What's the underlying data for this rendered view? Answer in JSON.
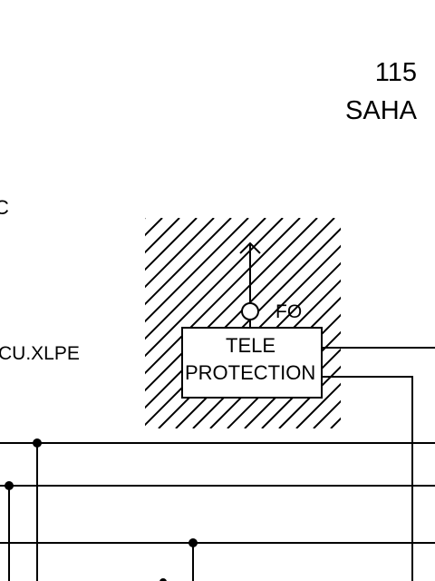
{
  "station": {
    "number": "115",
    "name": "SAHA"
  },
  "labels": {
    "cut_left": "C",
    "cable": "CU.XLPE",
    "fiber": "FO"
  },
  "teleprotection": {
    "line1": "TELE",
    "line2": "PROTECTION"
  },
  "colors": {
    "stroke": "#000000",
    "background": "#ffffff"
  }
}
